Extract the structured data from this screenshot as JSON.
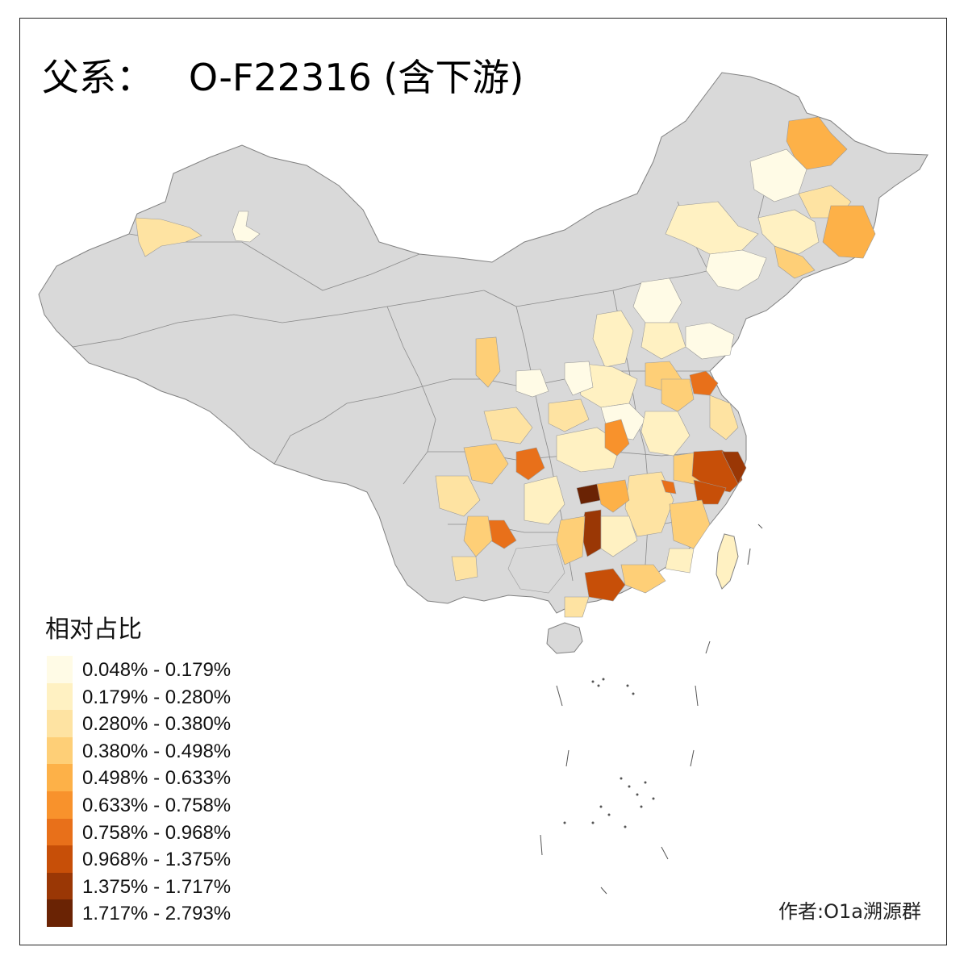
{
  "title": "父系：   O-F22316 (含下游)",
  "legend": {
    "title": "相对占比",
    "bins": [
      {
        "label": "0.048% - 0.179%",
        "color": "#fffbe6"
      },
      {
        "label": "0.179% - 0.280%",
        "color": "#fff1c2"
      },
      {
        "label": "0.280% - 0.380%",
        "color": "#fee3a2"
      },
      {
        "label": "0.380% - 0.498%",
        "color": "#fecf77"
      },
      {
        "label": "0.498% - 0.633%",
        "color": "#fdb148"
      },
      {
        "label": "0.633% - 0.758%",
        "color": "#f8922c"
      },
      {
        "label": "0.758% - 0.968%",
        "color": "#e8701a"
      },
      {
        "label": "0.968% - 1.375%",
        "color": "#c74f08"
      },
      {
        "label": "1.375% - 1.717%",
        "color": "#9a3705"
      },
      {
        "label": "1.717% - 2.793%",
        "color": "#6a2304"
      }
    ]
  },
  "author": "作者:O1a溯源群",
  "colors": {
    "no_data": "#d9d9d9",
    "border": "#808080",
    "frame": "#222222"
  }
}
